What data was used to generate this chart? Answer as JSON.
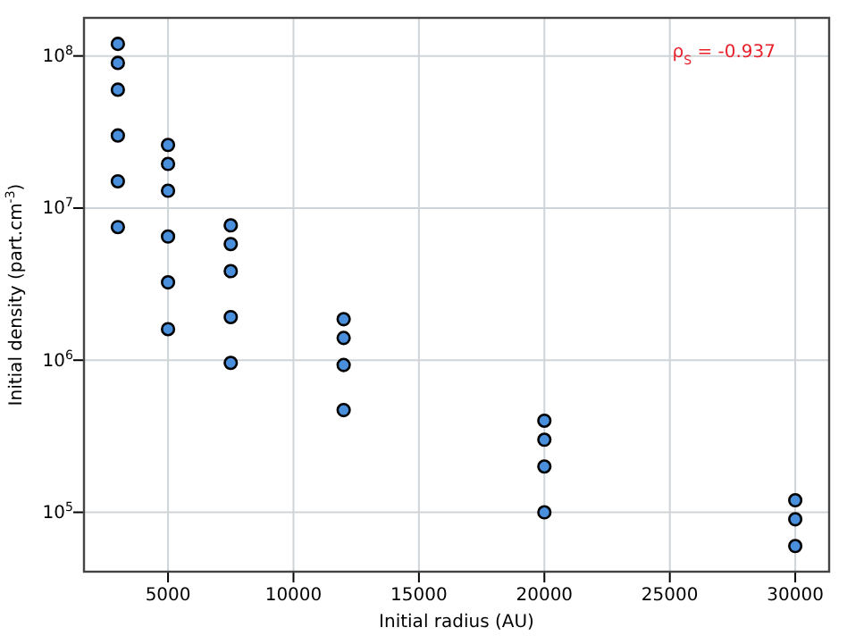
{
  "chart_data": {
    "type": "scatter",
    "xlabel": "Initial radius (AU)",
    "ylabel": "Initial density (part.cm$^{-3}$)",
    "log": "y",
    "grid": true,
    "marker": "circle",
    "x": [
      3000,
      3000,
      3000,
      3000,
      3000,
      3000,
      5000,
      5000,
      5000,
      5000,
      5000,
      5000,
      7500,
      7500,
      7500,
      7500,
      7500,
      12000,
      12000,
      12000,
      12000,
      20000,
      20000,
      20000,
      20000,
      30000,
      30000,
      30000
    ],
    "values": [
      120000000,
      90000000,
      60000000,
      30000000,
      15000000,
      7500000,
      26000000,
      19500000,
      13000000,
      6500000,
      3250000,
      1600000,
      7700000,
      5800000,
      3850000,
      1920000,
      960000,
      1860000,
      1400000,
      930000,
      470000,
      400000,
      300000,
      200000,
      100000,
      120000,
      90000,
      60000
    ],
    "color": "#4a8fdc",
    "xlim": [
      1650,
      31350
    ],
    "xticks": [
      5000,
      10000,
      15000,
      20000,
      25000,
      30000
    ],
    "ylim": [
      40700,
      178000000
    ],
    "yticks": [
      {
        "value": 100000,
        "label": "10$^{5}$"
      },
      {
        "value": 1000000,
        "label": "10$^{6}$"
      },
      {
        "value": 10000000,
        "label": "10$^{7}$"
      },
      {
        "value": 100000000,
        "label": "10$^{8}$"
      }
    ],
    "annotations": [
      "ρ$_{S}$ = -0.937"
    ]
  }
}
